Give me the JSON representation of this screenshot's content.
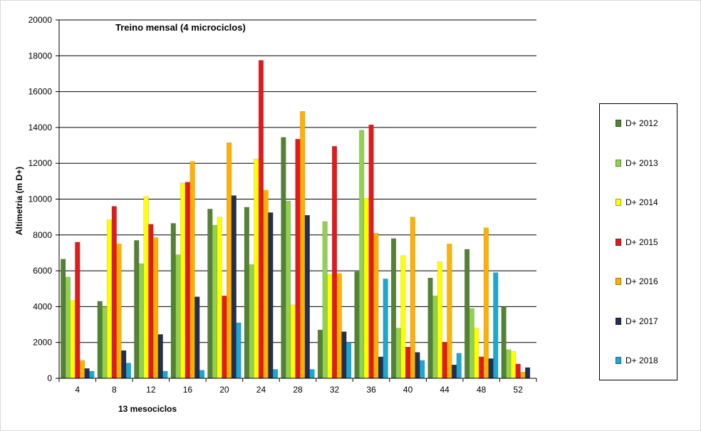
{
  "chart_data": {
    "type": "bar",
    "title": "Treino mensal (4 microciclos)",
    "xlabel": "13 mesociclos",
    "ylabel": "Altimetria (m D+)",
    "ylim": [
      0,
      20000
    ],
    "yticks": [
      0,
      2000,
      4000,
      6000,
      8000,
      10000,
      12000,
      14000,
      16000,
      18000,
      20000
    ],
    "grid": true,
    "legend_position": "right",
    "categories": [
      "4",
      "8",
      "12",
      "16",
      "20",
      "24",
      "28",
      "32",
      "36",
      "40",
      "44",
      "48",
      "52"
    ],
    "series": [
      {
        "name": "D+ 2012",
        "color": "#548235",
        "values": [
          6650,
          4300,
          7700,
          8650,
          9450,
          9550,
          13450,
          2700,
          5950,
          7800,
          5600,
          7200,
          4000
        ]
      },
      {
        "name": "D+ 2013",
        "color": "#92d050",
        "values": [
          5650,
          4000,
          6400,
          6900,
          8550,
          6350,
          9900,
          8750,
          13850,
          2800,
          4600,
          3900,
          1600
        ]
      },
      {
        "name": "D+ 2014",
        "color": "#ffff00",
        "values": [
          4350,
          8850,
          10150,
          10900,
          9000,
          12250,
          4100,
          5800,
          10050,
          6850,
          6500,
          2800,
          1500
        ]
      },
      {
        "name": "D+ 2015",
        "color": "#e31a1c",
        "values": [
          7600,
          9600,
          8600,
          10950,
          4600,
          17750,
          13350,
          12950,
          14150,
          1750,
          2000,
          1200,
          800
        ]
      },
      {
        "name": "D+ 2016",
        "color": "#ffb000",
        "values": [
          1000,
          7500,
          7850,
          12100,
          13150,
          10500,
          14900,
          5850,
          8100,
          9000,
          7500,
          8400,
          350
        ]
      },
      {
        "name": "D+ 2017",
        "color": "#1f3050",
        "values": [
          550,
          1550,
          2450,
          4550,
          10200,
          9250,
          9100,
          2600,
          1200,
          1450,
          750,
          1100,
          600
        ]
      },
      {
        "name": "D+ 2018",
        "color": "#1aa7d4",
        "values": [
          400,
          850,
          400,
          450,
          3100,
          500,
          500,
          2000,
          5550,
          1000,
          1400,
          5900,
          0
        ]
      }
    ]
  }
}
